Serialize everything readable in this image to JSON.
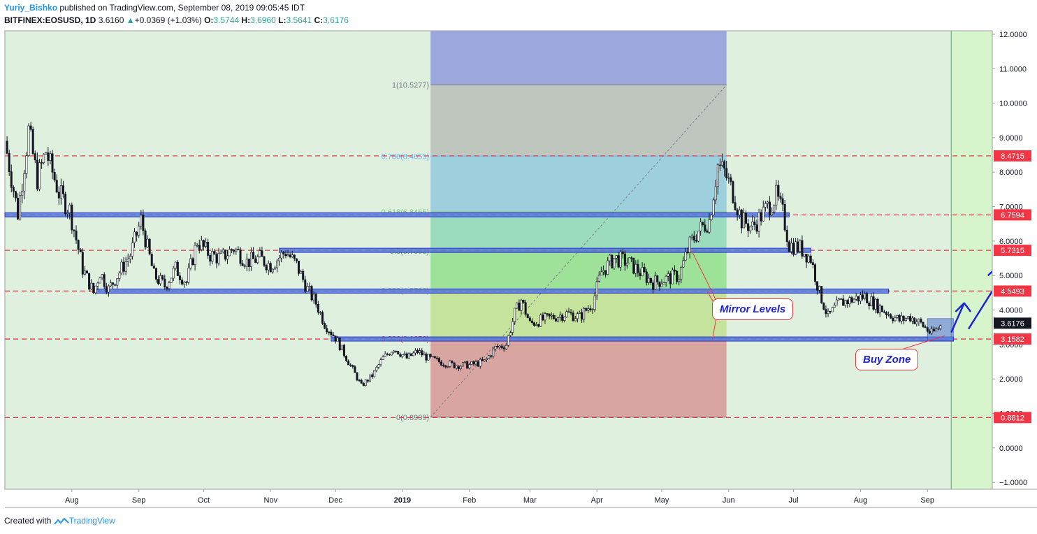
{
  "header": {
    "author": "Yuriy_Bishko",
    "published": "published on TradingView.com, September 08, 2019 09:05:45 IDT",
    "symbol": "BITFINEX:EOSUSD, 1D",
    "last": "3.6160",
    "change": "+0.0369 (+1.03%)",
    "o_label": "O:",
    "o": "3.5744",
    "h_label": "H:",
    "h": "3.6960",
    "l_label": "L:",
    "l": "3.5641",
    "c_label": "C:",
    "c": "3.6176"
  },
  "footer": {
    "created": "Created with",
    "brand": "TradingView"
  },
  "annotations": {
    "mirror": "Mirror Levels",
    "buy": "Buy Zone"
  },
  "colors": {
    "background": "#dff0df",
    "right_zone": "#d6f5cc",
    "level_line": "#f23645",
    "zone_fill": "#5b7fd6",
    "arrow": "#1e22d6",
    "price_badge": "#131722"
  },
  "chart_data": {
    "type": "candlestick",
    "ylim": [
      -1.2,
      12.1
    ],
    "y_ticks": [
      "12.0000",
      "11.0000",
      "10.0000",
      "9.0000",
      "8.0000",
      "7.0000",
      "6.0000",
      "5.0000",
      "4.0000",
      "3.0000",
      "2.0000",
      "1.0000",
      "0.0000",
      "−1.0000"
    ],
    "x_ticks": [
      "Aug",
      "Sep",
      "Oct",
      "Nov",
      "Dec",
      "2019",
      "Feb",
      "Mar",
      "Apr",
      "May",
      "Jun",
      "Jul",
      "Aug",
      "Sep"
    ],
    "horizontal_levels": [
      8.4715,
      6.7594,
      5.7315,
      4.5493,
      3.1582,
      0.8812
    ],
    "price_labels": [
      "8.4715",
      "6.7594",
      "5.7315",
      "4.5493",
      "3.1582",
      "0.8812"
    ],
    "current_price": "3.6176",
    "fibonacci": [
      {
        "label": "1(10.5277)",
        "value": 10.5277,
        "color": "#787b86"
      },
      {
        "label": "0.786(8.4655)",
        "value": 8.4655,
        "color": "#64b5f6"
      },
      {
        "label": "0.618(6.8465)",
        "value": 6.8465,
        "color": "#81c784"
      },
      {
        "label": "0.5(5.7093)",
        "value": 5.7093,
        "color": "#4caf50"
      },
      {
        "label": "0.382(4.5722)",
        "value": 4.5722,
        "color": "#9ccc65"
      },
      {
        "label": "0.236(3.1652)",
        "value": 3.1652,
        "color": "#f23645"
      },
      {
        "label": "0(0.8909)",
        "value": 0.8909,
        "color": "#787b86"
      }
    ],
    "price_path": [
      [
        "2018-07-01",
        8.9
      ],
      [
        "2018-07-07",
        6.8
      ],
      [
        "2018-07-12",
        9.2
      ],
      [
        "2018-07-16",
        7.8
      ],
      [
        "2018-07-20",
        8.6
      ],
      [
        "2018-07-26",
        7.4
      ],
      [
        "2018-07-31",
        6.9
      ],
      [
        "2018-08-06",
        5.2
      ],
      [
        "2018-08-11",
        4.5
      ],
      [
        "2018-08-14",
        5.1
      ],
      [
        "2018-08-18",
        4.6
      ],
      [
        "2018-08-24",
        5.2
      ],
      [
        "2018-08-28",
        5.6
      ],
      [
        "2018-09-02",
        6.6
      ],
      [
        "2018-09-08",
        5.0
      ],
      [
        "2018-09-13",
        4.7
      ],
      [
        "2018-09-18",
        5.2
      ],
      [
        "2018-09-23",
        4.8
      ],
      [
        "2018-09-28",
        6.0
      ],
      [
        "2018-10-04",
        5.6
      ],
      [
        "2018-10-09",
        5.5
      ],
      [
        "2018-10-15",
        5.8
      ],
      [
        "2018-10-21",
        5.4
      ],
      [
        "2018-10-27",
        5.5
      ],
      [
        "2018-11-01",
        5.3
      ],
      [
        "2018-11-08",
        5.7
      ],
      [
        "2018-11-13",
        5.3
      ],
      [
        "2018-11-18",
        4.6
      ],
      [
        "2018-11-22",
        4.2
      ],
      [
        "2018-11-26",
        3.6
      ],
      [
        "2018-12-01",
        3.2
      ],
      [
        "2018-12-07",
        2.5
      ],
      [
        "2018-12-13",
        1.8
      ],
      [
        "2018-12-18",
        2.1
      ],
      [
        "2018-12-23",
        2.6
      ],
      [
        "2018-12-28",
        2.9
      ],
      [
        "2019-01-03",
        2.6
      ],
      [
        "2019-01-08",
        2.8
      ],
      [
        "2019-01-13",
        2.6
      ],
      [
        "2019-01-18",
        2.5
      ],
      [
        "2019-01-25",
        2.4
      ],
      [
        "2019-02-01",
        2.4
      ],
      [
        "2019-02-08",
        2.5
      ],
      [
        "2019-02-13",
        2.9
      ],
      [
        "2019-02-18",
        3.0
      ],
      [
        "2019-02-22",
        3.9
      ],
      [
        "2019-02-25",
        4.3
      ],
      [
        "2019-03-01",
        3.6
      ],
      [
        "2019-03-06",
        3.7
      ],
      [
        "2019-03-12",
        3.8
      ],
      [
        "2019-03-18",
        3.9
      ],
      [
        "2019-03-24",
        3.8
      ],
      [
        "2019-03-30",
        4.2
      ],
      [
        "2019-04-03",
        5.1
      ],
      [
        "2019-04-09",
        5.5
      ],
      [
        "2019-04-15",
        5.4
      ],
      [
        "2019-04-21",
        5.1
      ],
      [
        "2019-04-27",
        4.8
      ],
      [
        "2019-05-03",
        4.9
      ],
      [
        "2019-05-09",
        5.0
      ],
      [
        "2019-05-14",
        5.9
      ],
      [
        "2019-05-18",
        6.3
      ],
      [
        "2019-05-23",
        6.6
      ],
      [
        "2019-05-27",
        8.2
      ],
      [
        "2019-05-30",
        8.0
      ],
      [
        "2019-06-03",
        7.4
      ],
      [
        "2019-06-07",
        6.6
      ],
      [
        "2019-06-12",
        6.4
      ],
      [
        "2019-06-18",
        6.9
      ],
      [
        "2019-06-23",
        7.3
      ],
      [
        "2019-06-26",
        6.8
      ],
      [
        "2019-06-29",
        5.9
      ],
      [
        "2019-07-04",
        5.8
      ],
      [
        "2019-07-09",
        5.5
      ],
      [
        "2019-07-13",
        4.5
      ],
      [
        "2019-07-17",
        3.8
      ],
      [
        "2019-07-22",
        4.2
      ],
      [
        "2019-07-28",
        4.3
      ],
      [
        "2019-08-03",
        4.4
      ],
      [
        "2019-08-09",
        4.1
      ],
      [
        "2019-08-14",
        3.9
      ],
      [
        "2019-08-19",
        3.7
      ],
      [
        "2019-08-24",
        3.8
      ],
      [
        "2019-08-29",
        3.6
      ],
      [
        "2019-09-03",
        3.3
      ],
      [
        "2019-09-08",
        3.6
      ]
    ]
  }
}
